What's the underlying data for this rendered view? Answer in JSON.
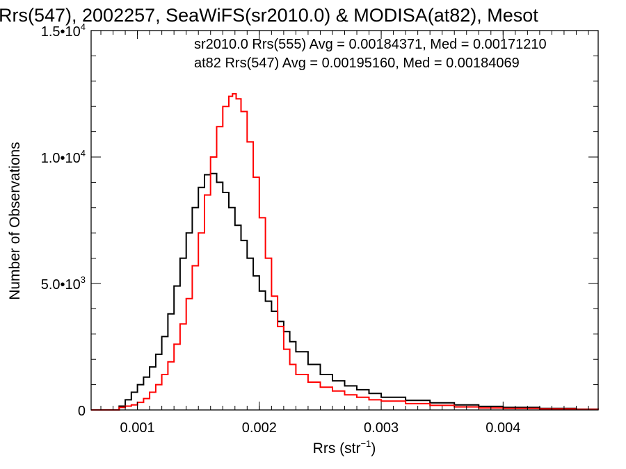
{
  "chart_data": {
    "type": "histogram-step",
    "title": "Rrs(547), 2002257, SeaWiFS(sr2010.0) & MODISA(at82), Mesot",
    "xlabel_base": "Rrs (str",
    "xlabel_sup": "−1",
    "xlabel_tail": ")",
    "ylabel": "Number of Observations",
    "xlim": [
      0.00062,
      0.00478
    ],
    "ylim": [
      0,
      15000
    ],
    "x_ticks": [
      {
        "value": 0.001,
        "label": "0.001"
      },
      {
        "value": 0.002,
        "label": "0.002"
      },
      {
        "value": 0.003,
        "label": "0.003"
      },
      {
        "value": 0.004,
        "label": "0.004"
      }
    ],
    "y_ticks": [
      {
        "value": 0,
        "label_base": "0",
        "label_sup": ""
      },
      {
        "value": 5000,
        "label_base": "5.0•10",
        "label_sup": "3"
      },
      {
        "value": 10000,
        "label_base": "1.0•10",
        "label_sup": "4"
      },
      {
        "value": 15000,
        "label_base": "1.5•10",
        "label_sup": "4"
      }
    ],
    "legend": [
      {
        "text": "sr2010.0 Rrs(555) Avg = 0.00184371, Med = 0.00171210",
        "color": "#000000"
      },
      {
        "text": "at82 Rrs(547) Avg = 0.00195160, Med = 0.00184069",
        "color": "#ff0000"
      }
    ],
    "series": [
      {
        "color": "#000000",
        "x": [
          0.00062,
          0.0008,
          0.00085,
          0.0009,
          0.00095,
          0.001,
          0.00105,
          0.0011,
          0.00115,
          0.0012,
          0.00125,
          0.0013,
          0.00135,
          0.0014,
          0.00145,
          0.0015,
          0.00155,
          0.0016,
          0.00165,
          0.0017,
          0.00175,
          0.0018,
          0.00185,
          0.0019,
          0.00195,
          0.002,
          0.00205,
          0.0021,
          0.00215,
          0.0022,
          0.00225,
          0.0023,
          0.0024,
          0.0025,
          0.0026,
          0.0027,
          0.0028,
          0.0029,
          0.003,
          0.0032,
          0.0034,
          0.0036,
          0.0038,
          0.004,
          0.0043,
          0.0046,
          0.00478
        ],
        "y": [
          0,
          0,
          150,
          400,
          700,
          1000,
          1300,
          1700,
          2200,
          2900,
          3800,
          4900,
          6000,
          7000,
          8000,
          8800,
          9300,
          9350,
          9000,
          8600,
          8000,
          7300,
          6700,
          6000,
          5300,
          4700,
          4300,
          3900,
          3500,
          3100,
          2700,
          2300,
          1800,
          1400,
          1150,
          950,
          800,
          650,
          500,
          380,
          280,
          200,
          140,
          100,
          60,
          30,
          20
        ]
      },
      {
        "color": "#ff0000",
        "x": [
          0.00062,
          0.0008,
          0.00085,
          0.0009,
          0.00095,
          0.001,
          0.00105,
          0.0011,
          0.00115,
          0.0012,
          0.00125,
          0.0013,
          0.00135,
          0.0014,
          0.00145,
          0.0015,
          0.00155,
          0.0016,
          0.00165,
          0.0017,
          0.00175,
          0.00178,
          0.00181,
          0.00185,
          0.0019,
          0.00195,
          0.002,
          0.00205,
          0.0021,
          0.00215,
          0.0022,
          0.00225,
          0.0023,
          0.0024,
          0.0025,
          0.0026,
          0.0027,
          0.0028,
          0.0029,
          0.003,
          0.0032,
          0.0034,
          0.0036,
          0.0038,
          0.004,
          0.0043,
          0.0046,
          0.00478
        ],
        "y": [
          0,
          0,
          100,
          150,
          200,
          300,
          450,
          700,
          1000,
          1400,
          1900,
          2600,
          3400,
          4400,
          5700,
          7000,
          8500,
          10000,
          11200,
          12000,
          12400,
          12500,
          12300,
          11800,
          10600,
          9200,
          7600,
          6000,
          4500,
          3300,
          2400,
          1800,
          1400,
          1100,
          900,
          750,
          600,
          500,
          400,
          350,
          250,
          180,
          120,
          80,
          60,
          40,
          20,
          10
        ]
      }
    ]
  }
}
